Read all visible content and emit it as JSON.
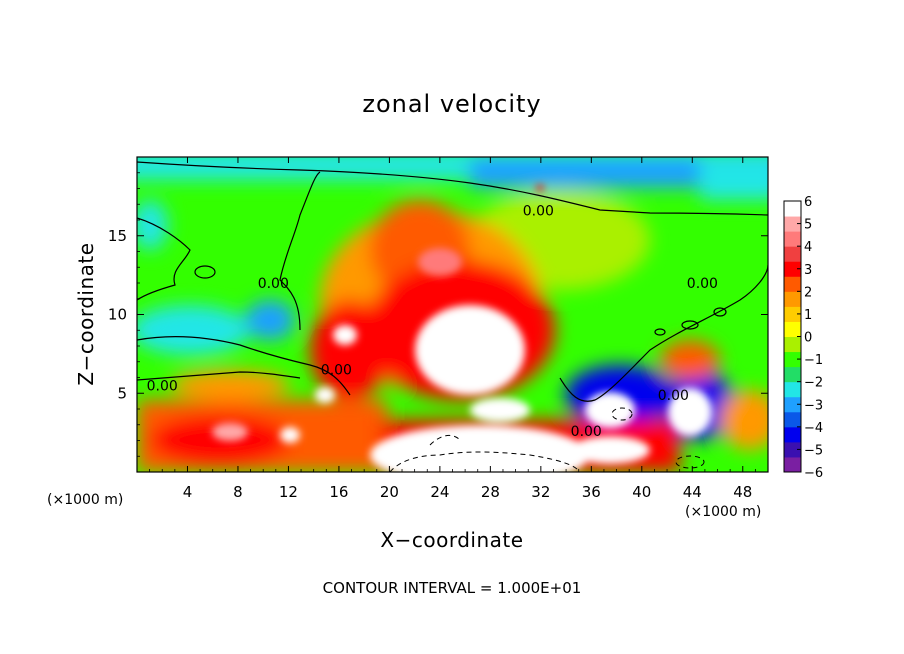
{
  "chart_data": {
    "type": "heatmap",
    "title": "zonal velocity",
    "xlabel": "X−coordinate",
    "ylabel": "Z−coordinate",
    "x_unit_left": "(×1000 m)",
    "x_unit_right": "(×1000 m)",
    "xlim": [
      0,
      50
    ],
    "ylim": [
      0,
      20
    ],
    "x_ticks": [
      4,
      8,
      12,
      16,
      20,
      24,
      28,
      32,
      36,
      40,
      44,
      48
    ],
    "x_tick_labels": [
      "4",
      "8",
      "12",
      "16",
      "20",
      "24",
      "28",
      "32",
      "36",
      "40",
      "44",
      "48"
    ],
    "y_ticks": [
      5,
      10,
      15
    ],
    "y_tick_labels": [
      "5",
      "10",
      "15"
    ],
    "footnote": "CONTOUR INTERVAL = 1.000E+01",
    "colorbar": {
      "min": -6,
      "max": 6,
      "tick_labels": [
        "6",
        "5",
        "4",
        "3",
        "2",
        "1",
        "0",
        "−1",
        "−2",
        "−3",
        "−4",
        "−5",
        "−6"
      ],
      "colors": [
        "#7a1fa2",
        "#3a10b0",
        "#0000ee",
        "#0a58e8",
        "#1fa0ff",
        "#22e6e6",
        "#22dd66",
        "#33ff00",
        "#aaf000",
        "#ffff00",
        "#ffcc00",
        "#ff9900",
        "#ff5a00",
        "#ff0000",
        "#f04040",
        "#ff7a7a",
        "#ffa8a8",
        "#ffffff"
      ]
    },
    "contour_labels": [
      {
        "text": "0.00",
        "x": 31.8,
        "z": 16.6
      },
      {
        "text": "0.00",
        "x": 10.8,
        "z": 12.0
      },
      {
        "text": "0.00",
        "x": 15.8,
        "z": 6.5
      },
      {
        "text": "0.00",
        "x": 2.0,
        "z": 5.5
      },
      {
        "text": "0.00",
        "x": 35.6,
        "z": 2.6
      },
      {
        "text": "0.00",
        "x": 42.5,
        "z": 4.9
      },
      {
        "text": "0.00",
        "x": 44.8,
        "z": 12.0
      }
    ]
  }
}
